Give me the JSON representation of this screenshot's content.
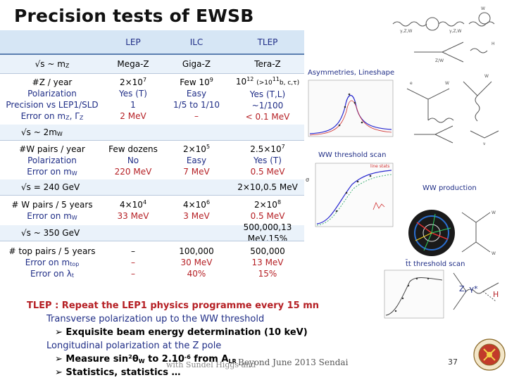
{
  "title": "Precision tests of EWSB",
  "table": {
    "header": [
      "",
      "LEP",
      "ILC",
      "TLEP"
    ],
    "row_mz": [
      "√s ~ m",
      "Mega-Z",
      "Giga-Z",
      "Tera-Z"
    ],
    "row_mz_sub": "Z",
    "row_z_labels": [
      "#Z / year",
      "Polarization",
      "Precision vs LEP1/SLD",
      "Error on m"
    ],
    "row_z_labels_err_sub": "Z",
    "row_z_labels_err_tail": ", Γ",
    "row_z_labels_err_tail_sub": "Z",
    "row_z_lep": [
      "2×10",
      "Yes (T)",
      "1",
      "2 MeV"
    ],
    "row_z_lep_sup": "7",
    "row_z_ilc": [
      "Few 10",
      "Easy",
      "1/5 to 1/10",
      "–"
    ],
    "row_z_ilc_sup": "9",
    "row_z_tlep": [
      "10",
      "(>10",
      "b, c,τ)",
      "Yes (T,L)",
      "~1/100",
      "< 0.1 MeV"
    ],
    "row_z_tlep_sup": "12",
    "row_z_tlep_sup2": "11",
    "row_ww_head": [
      "√s ~ 2m",
      "W"
    ],
    "row_ww_labels": [
      "#W pairs / year",
      "Polarization",
      "Error on m"
    ],
    "row_ww_err_sub": "W",
    "row_ww_lep": [
      "Few dozens",
      "No",
      "220 MeV"
    ],
    "row_ww_ilc": [
      "2×10",
      "Easy",
      "7 MeV"
    ],
    "row_ww_ilc_sup": "5",
    "row_ww_tlep": [
      "2.5×10",
      "Yes (T)",
      "0.5 MeV"
    ],
    "row_ww_tlep_sup": "7",
    "row_240_head": "√s = 240 GeV",
    "row_240_tlep": [
      "2×10",
      "0.5 MeV"
    ],
    "row_240_labels": [
      "# W pairs / 5 years",
      "Error on m"
    ],
    "row_240_err_sub": "W",
    "row_240_lep": [
      "4×10",
      "33 MeV"
    ],
    "row_240_lep_sup": "4",
    "row_240_ilc": [
      "4×10",
      "3 MeV"
    ],
    "row_240_ilc_sup": "6",
    "row_240_tlep_sup": "8",
    "row_350_head": "√s ~ 350 GeV",
    "row_350_tlep": [
      "500,000",
      "13 MeV",
      "15%"
    ],
    "row_350_labels": [
      "# top pairs / 5 years",
      "Error on m",
      "Error on λ"
    ],
    "row_350_err_sub": "top",
    "row_350_lambda_sub": "t",
    "row_350_lep": [
      "–",
      "–",
      "–"
    ],
    "row_350_ilc": [
      "100,000",
      "30 MeV",
      "40%"
    ]
  },
  "right_panel": {
    "asym_label": "Asymmetries, Lineshape",
    "ww_scan_label": "WW threshold scan",
    "ww_prod_label": "WW production",
    "tt_scan_label": "t̄t threshold scan",
    "h_label": "H",
    "z_gamma_label": "Z, γ*"
  },
  "bottom": {
    "head": "TLEP : Repeat the LEP1 physics programme every 15 mn",
    "line1": "Transverse polarization up to the WW threshold",
    "bullet1": "Exquisite beam energy determination (10 keV)",
    "line2": "Longitudinal polarization at the Z pole",
    "bullet2_pre": "Measure sin²θ",
    "bullet2_sub": "W",
    "bullet2_mid": " to 2.10",
    "bullet2_sup": "-6",
    "bullet2_post": " from A",
    "bullet2_post_sub": "LR",
    "bullet3": "Statistics, statistics …"
  },
  "footer": "Beyond June 2013 Sendai",
  "footer_overlap": "with Sundel Higgs and",
  "page_number": "37",
  "colors": {
    "header_blue": "#d6e6f5",
    "text_navy": "#1f2d86",
    "text_red": "#b51f24"
  }
}
